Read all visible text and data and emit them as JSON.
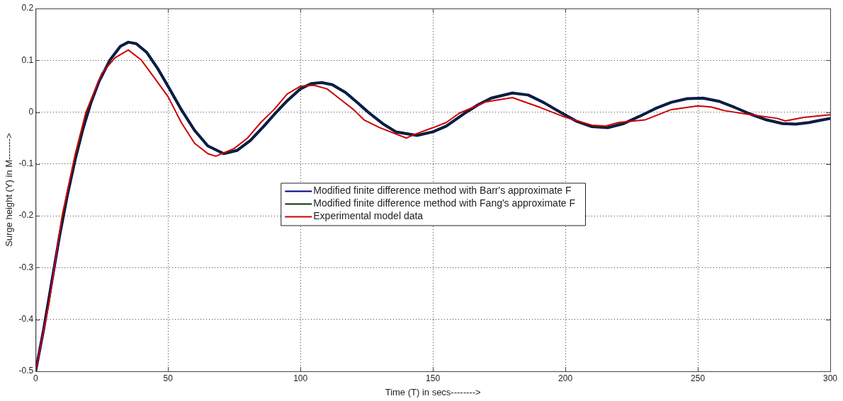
{
  "chart_data": {
    "type": "line",
    "xlabel": "Time (T) in secs-------->",
    "ylabel": "Surge height (Y) in M------->",
    "xlim": [
      0,
      300
    ],
    "xticks": [
      0,
      50,
      100,
      150,
      200,
      250,
      300
    ],
    "ylim": [
      -0.5,
      0.2
    ],
    "yticks": [
      -0.5,
      -0.4,
      -0.3,
      -0.2,
      -0.1,
      0,
      0.1,
      0.2
    ],
    "grid": true,
    "legend": "center",
    "line_style": "solid",
    "marker": "none",
    "series": [
      {
        "name": "Modified finite difference method with Barr's approximate F",
        "color": "#000080",
        "x": [
          0,
          3,
          6,
          9,
          12,
          15,
          18,
          21,
          24,
          28,
          32,
          35,
          38,
          42,
          46,
          50,
          55,
          60,
          65,
          71,
          76,
          81,
          86,
          90,
          95,
          100,
          104,
          108,
          112,
          117,
          122,
          126,
          131,
          136,
          144,
          150,
          155,
          162,
          167,
          172,
          180,
          186,
          192,
          198,
          204,
          210,
          216,
          222,
          228,
          234,
          240,
          246,
          252,
          258,
          264,
          270,
          276,
          282,
          287,
          292,
          296,
          300
        ],
        "values": [
          -0.5,
          -0.42,
          -0.33,
          -0.24,
          -0.16,
          -0.09,
          -0.03,
          0.02,
          0.06,
          0.1,
          0.127,
          0.135,
          0.132,
          0.115,
          0.085,
          0.05,
          0.005,
          -0.035,
          -0.065,
          -0.08,
          -0.074,
          -0.055,
          -0.028,
          -0.005,
          0.022,
          0.045,
          0.055,
          0.057,
          0.053,
          0.038,
          0.016,
          -0.002,
          -0.022,
          -0.038,
          -0.045,
          -0.038,
          -0.027,
          -0.002,
          0.014,
          0.027,
          0.037,
          0.033,
          0.018,
          0.0,
          -0.017,
          -0.028,
          -0.03,
          -0.022,
          -0.008,
          0.007,
          0.019,
          0.026,
          0.027,
          0.021,
          0.009,
          -0.004,
          -0.015,
          -0.022,
          -0.023,
          -0.02,
          -0.016,
          -0.012
        ]
      },
      {
        "name": "Modified finite difference method with Fang's approximate F",
        "color": "#003300",
        "x": [
          0,
          3,
          6,
          9,
          12,
          15,
          18,
          21,
          24,
          28,
          32,
          35,
          38,
          42,
          46,
          50,
          55,
          60,
          65,
          71,
          76,
          81,
          86,
          90,
          95,
          100,
          104,
          108,
          112,
          117,
          122,
          126,
          131,
          136,
          144,
          150,
          155,
          162,
          167,
          172,
          180,
          186,
          192,
          198,
          204,
          210,
          216,
          222,
          228,
          234,
          240,
          246,
          252,
          258,
          264,
          270,
          276,
          282,
          287,
          292,
          296,
          300
        ],
        "values": [
          -0.5,
          -0.42,
          -0.33,
          -0.24,
          -0.16,
          -0.09,
          -0.03,
          0.02,
          0.06,
          0.1,
          0.127,
          0.135,
          0.132,
          0.115,
          0.085,
          0.05,
          0.005,
          -0.035,
          -0.065,
          -0.08,
          -0.074,
          -0.055,
          -0.028,
          -0.005,
          0.022,
          0.045,
          0.055,
          0.057,
          0.053,
          0.038,
          0.016,
          -0.002,
          -0.022,
          -0.038,
          -0.045,
          -0.038,
          -0.027,
          -0.002,
          0.014,
          0.027,
          0.037,
          0.033,
          0.018,
          0.0,
          -0.017,
          -0.028,
          -0.03,
          -0.022,
          -0.008,
          0.007,
          0.019,
          0.026,
          0.027,
          0.021,
          0.009,
          -0.004,
          -0.015,
          -0.022,
          -0.023,
          -0.02,
          -0.016,
          -0.012
        ]
      },
      {
        "name": "Experimental model data",
        "color": "#cc0000",
        "x": [
          0,
          5,
          10,
          15,
          19,
          25,
          30,
          35,
          40,
          45,
          50,
          55,
          60,
          65,
          68,
          75,
          80,
          85,
          90,
          95,
          100,
          105,
          110,
          115,
          120,
          124,
          130,
          140,
          143,
          150,
          155,
          160,
          170,
          180,
          190,
          200,
          210,
          215,
          220,
          230,
          240,
          250,
          255,
          260,
          270,
          280,
          283,
          290,
          300
        ],
        "values": [
          -0.5,
          -0.37,
          -0.2,
          -0.08,
          0,
          0.075,
          0.105,
          0.12,
          0.1,
          0.065,
          0.03,
          -0.02,
          -0.06,
          -0.08,
          -0.085,
          -0.07,
          -0.05,
          -0.02,
          0.005,
          0.035,
          0.05,
          0.052,
          0.045,
          0.025,
          0.005,
          -0.015,
          -0.03,
          -0.05,
          -0.043,
          -0.03,
          -0.02,
          -0.002,
          0.02,
          0.028,
          0.01,
          -0.01,
          -0.025,
          -0.027,
          -0.02,
          -0.015,
          0.005,
          0.012,
          0.01,
          0.003,
          -0.005,
          -0.012,
          -0.017,
          -0.01,
          -0.005
        ]
      }
    ]
  }
}
